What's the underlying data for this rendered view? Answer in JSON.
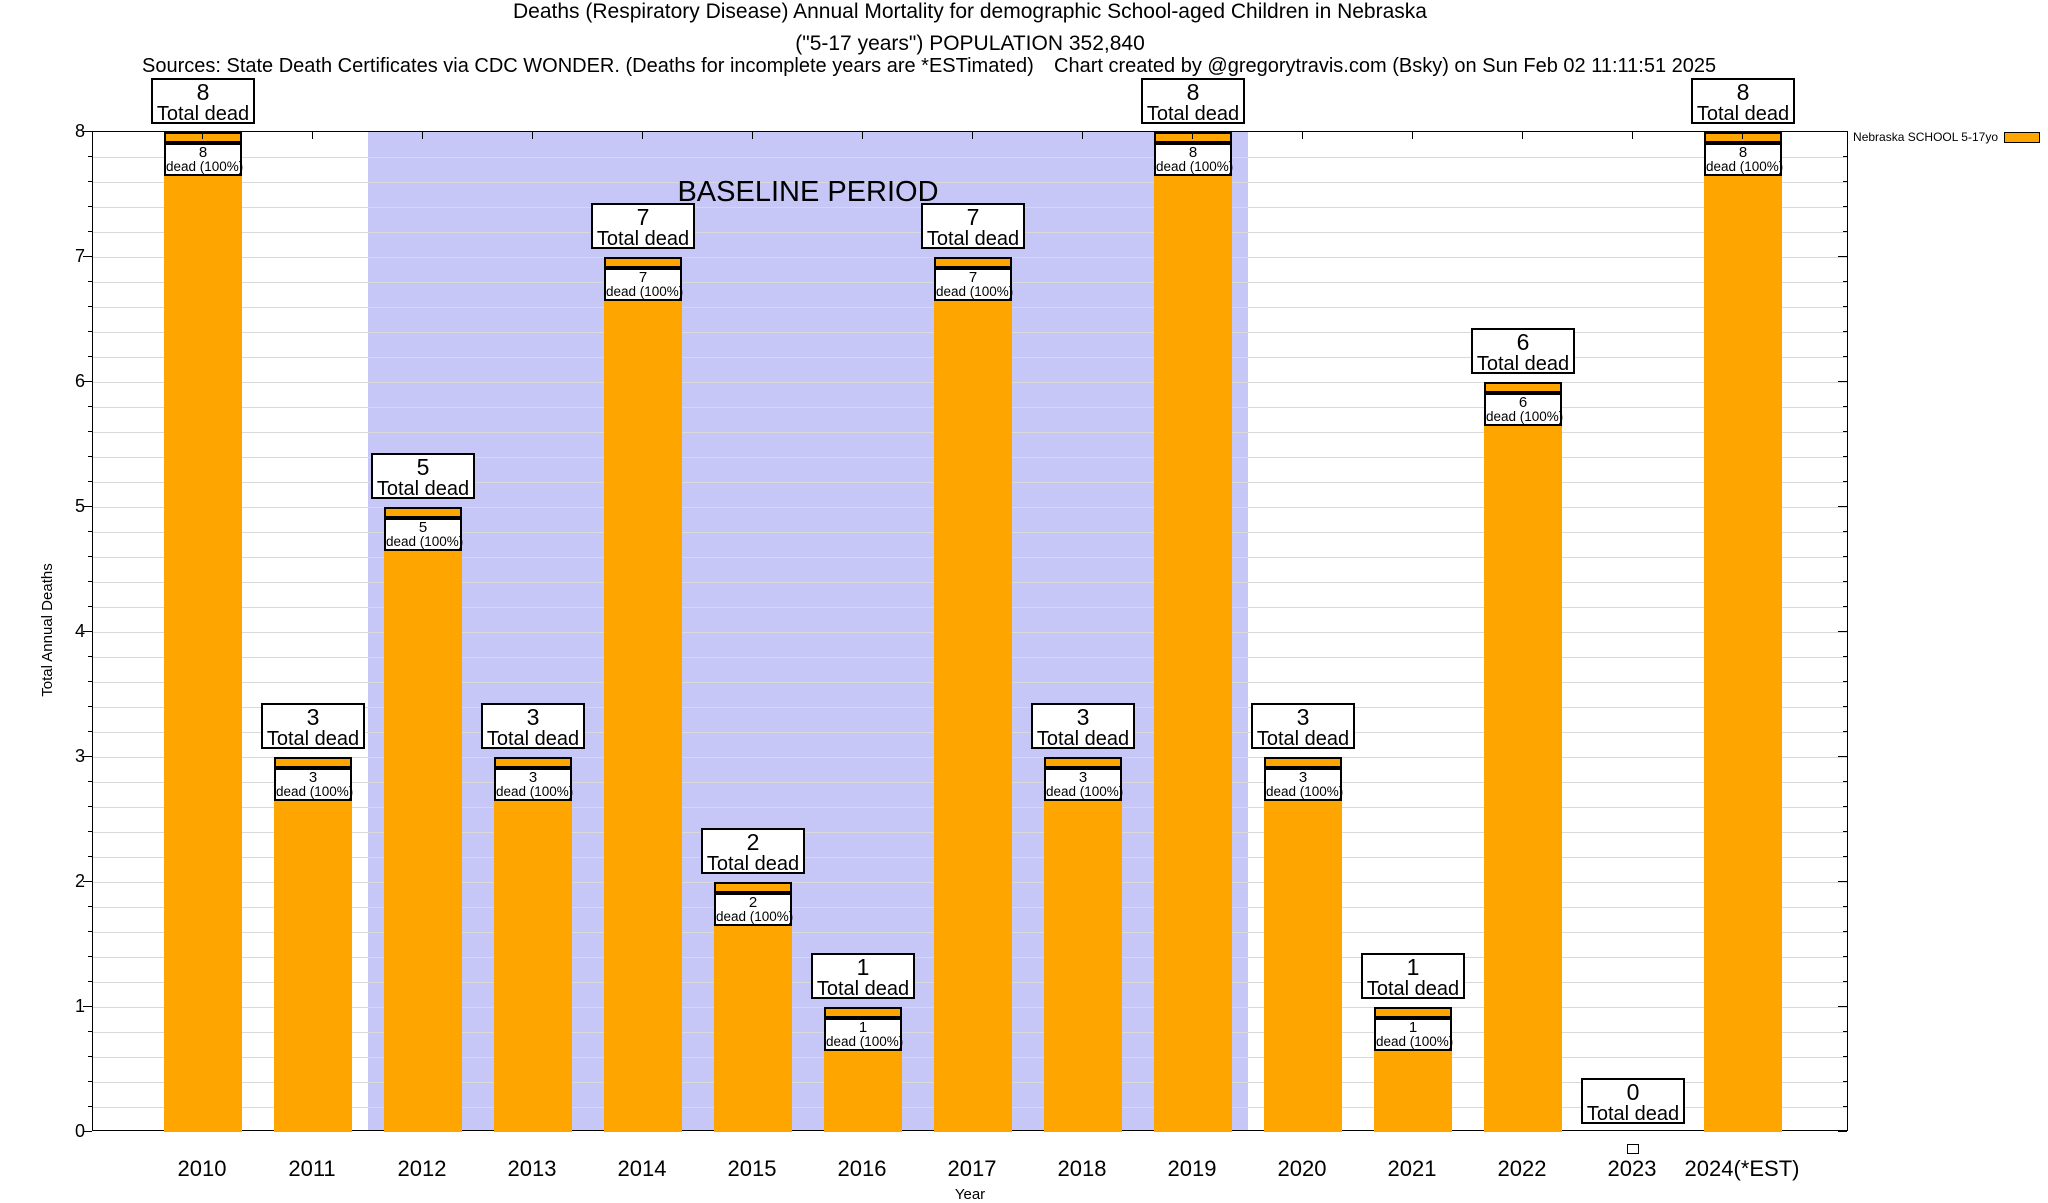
{
  "header": {
    "title_line1": "Deaths (Respiratory Disease) Annual Mortality for demographic School-aged Children in Nebraska",
    "title_line2": "(\"5-17 years\") POPULATION 352,840",
    "sources_note": "Sources: State Death Certificates via CDC WONDER. (Deaths for incomplete years are *ESTimated)",
    "credit_note": "Chart created by @gregorytravis.com (Bsky) on Sun Feb 02 11:11:51 2025"
  },
  "legend": {
    "series_label": "Nebraska SCHOOL 5-17yo",
    "swatch_color": "#FFA500"
  },
  "chart_data": {
    "type": "bar",
    "title": "Deaths (Respiratory Disease) Annual Mortality for demographic School-aged Children in Nebraska (\"5-17 years\") POPULATION 352,840",
    "xlabel": "Year",
    "ylabel": "Total Annual Deaths",
    "ylim": [
      0,
      8
    ],
    "ytick_values": [
      0,
      1,
      2,
      3,
      4,
      5,
      6,
      7,
      8
    ],
    "minor_grid_interval": 0.2,
    "grid": true,
    "legend_position": "top-right",
    "bar_color": "#FFA500",
    "categories": [
      "2010",
      "2011",
      "2012",
      "2013",
      "2014",
      "2015",
      "2016",
      "2017",
      "2018",
      "2019",
      "2020",
      "2021",
      "2022",
      "2023",
      "2024(*EST)"
    ],
    "series": [
      {
        "name": "Nebraska SCHOOL 5-17yo",
        "values": [
          8,
          3,
          5,
          3,
          7,
          2,
          1,
          7,
          3,
          8,
          3,
          1,
          6,
          0,
          8
        ]
      }
    ],
    "bar_labels": {
      "above_line2": "Total dead",
      "inside_line2": "dead (100%)"
    },
    "baseline_region": {
      "label": "BASELINE PERIOD",
      "from_category": "2012",
      "to_category": "2019",
      "fill_color": "#c6c6f7"
    }
  }
}
